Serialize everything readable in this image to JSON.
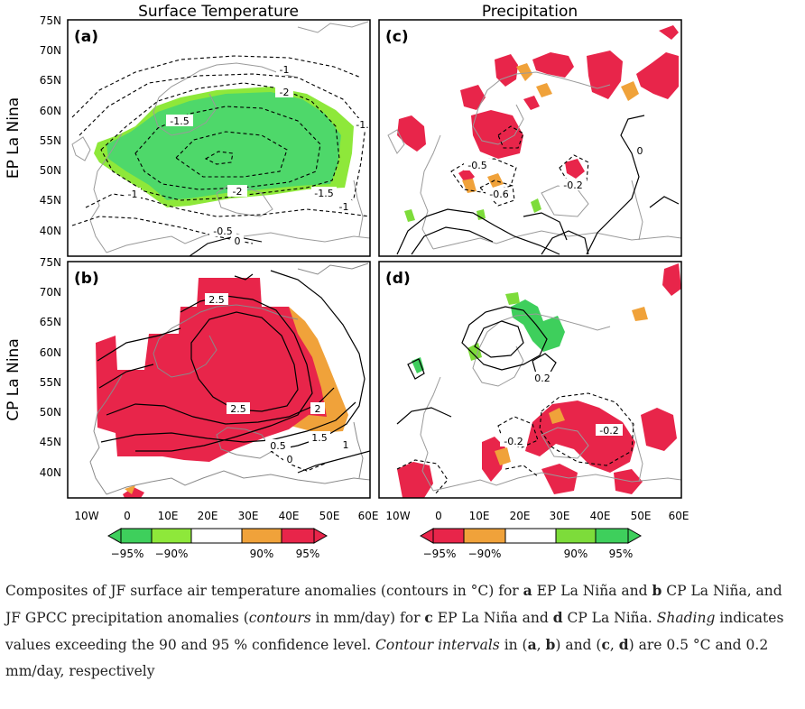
{
  "figure": {
    "column_titles": [
      "Surface Temperature",
      "Precipitation"
    ],
    "row_labels": [
      "EP La Nina",
      "CP La Nina"
    ],
    "panel_labels": [
      "(a)",
      "(c)",
      "(b)",
      "(d)"
    ],
    "lat_ticks": [
      "75N",
      "70N",
      "65N",
      "60N",
      "55N",
      "50N",
      "45N",
      "40N"
    ],
    "lon_ticks": [
      "10W",
      "0",
      "10E",
      "20E",
      "30E",
      "40E",
      "50E",
      "60E"
    ],
    "contour_labels": {
      "a": [
        "-1",
        "-2",
        "-1.5",
        "-1.5",
        "-1",
        "-2",
        "-1.5",
        "-1",
        "-0.5",
        "0"
      ],
      "b": [
        "2.5",
        "2.5",
        "2",
        "1.5",
        "1",
        "0.5",
        "0"
      ],
      "c": [
        "-0.5",
        "-0.6",
        "-0.2",
        "0"
      ],
      "d": [
        "0.2",
        "-0.2",
        "-0.2"
      ]
    },
    "colorbar_left": [
      "−95%",
      "−90%",
      "90%",
      "95%"
    ],
    "colorbar_right": [
      "−95%",
      "−90%",
      "90%",
      "95%"
    ],
    "colors": {
      "neg95": "#e8254a",
      "neg90": "#f0a23a",
      "pos90": "#7ddc3a",
      "pos95": "#3ecf5c",
      "temp_neg": "#4ed86a",
      "temp_neg_outer": "#8ee83a"
    }
  },
  "caption": {
    "t1": "Composites of JF surface air temperature anomalies (contours in °C) for ",
    "a": "a",
    "t2": " EP La Niña and ",
    "b": "b",
    "t3": " CP La Niña, and JF GPCC precipitation anomalies (",
    "i1": "contours",
    "t4": " in mm/day) for ",
    "c": "c",
    "t5": " EP La Niña and ",
    "d": "d",
    "t6": " CP La Niña. ",
    "i2": "Shading",
    "t7": " indicates values exceeding the 90 and 95 % confidence level. ",
    "i3": "Contour intervals",
    "t8": " in (",
    "a2": "a",
    "t9": ", ",
    "b2": "b",
    "t10": ") and (",
    "c2": "c",
    "t11": ", ",
    "d2": "d",
    "t12": ") are 0.5 °C and 0.2 mm/day, respectively"
  }
}
